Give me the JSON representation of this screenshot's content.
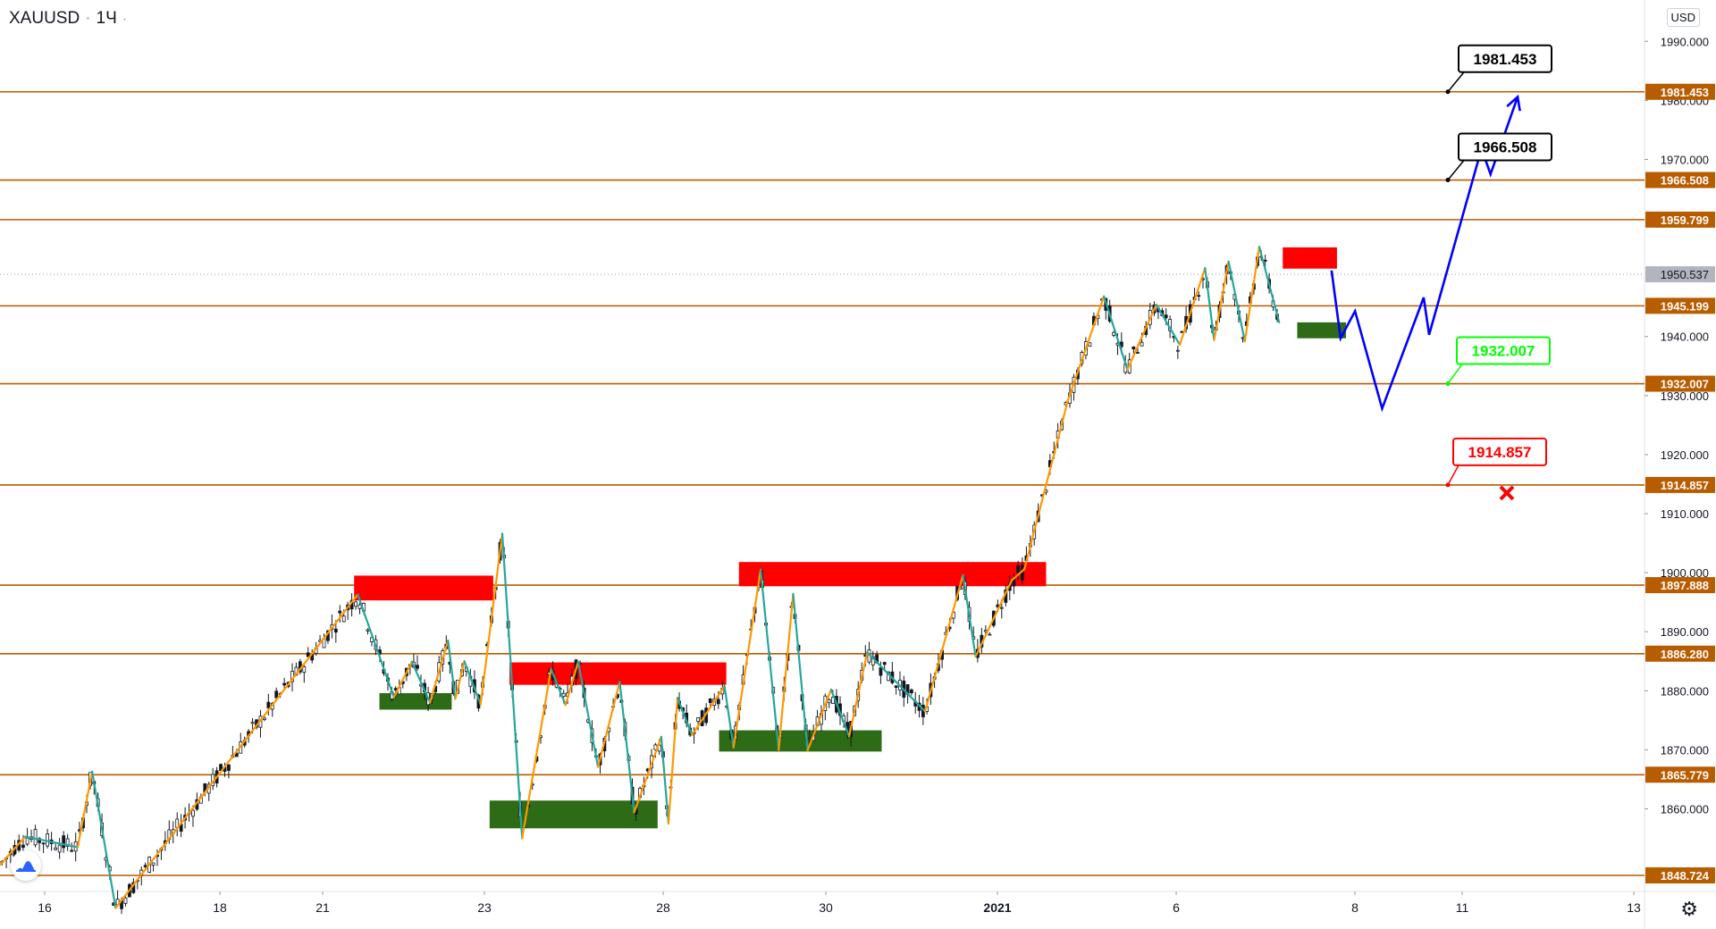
{
  "header": {
    "symbol": "XAUUSD",
    "separator": "·",
    "interval": "1Ч",
    "menu_dot": "·"
  },
  "currency": "USD",
  "icons": {
    "logo": "tradingview-logo-icon",
    "settings": "gear-icon",
    "invalidation": "x-mark-icon"
  },
  "colors": {
    "level_line": "#b85c00",
    "level_label_bg": "#b85c00",
    "supply_zone": "#ff0000",
    "demand_zone": "#2e6b16",
    "zigzag_up": "#ff9800",
    "zigzag_down": "#26a69a",
    "projection": "#0000ff",
    "current_price_bg": "#b2b5be",
    "target_callout_border": "#000000",
    "support_callout": "#00ff00",
    "stop_callout": "#ff0000"
  },
  "chart_data": {
    "type": "candlestick",
    "symbol": "XAUUSD",
    "interval": "1Ч",
    "currency": "USD",
    "y_axis": {
      "range": [
        1846,
        1997
      ],
      "ticks": [
        1990.0,
        1980.0,
        1970.0,
        1940.0,
        1930.0,
        1920.0,
        1910.0,
        1900.0,
        1890.0,
        1880.0,
        1870.0,
        1860.0
      ],
      "tick_labels": [
        "1990.000",
        "1980.000",
        "1970.000",
        "1940.000",
        "1930.000",
        "1920.000",
        "1910.000",
        "1900.000",
        "1890.000",
        "1880.000",
        "1870.000",
        "1860.000"
      ]
    },
    "x_axis": {
      "ticks": [
        "16",
        "18",
        "21",
        "23",
        "28",
        "30",
        "2021",
        "6",
        "8",
        "11",
        "13"
      ],
      "bold_tick": "2021"
    },
    "horizontal_levels": [
      {
        "value": 1981.453,
        "label": "1981.453"
      },
      {
        "value": 1966.508,
        "label": "1966.508"
      },
      {
        "value": 1959.799,
        "label": "1959.799"
      },
      {
        "value": 1945.199,
        "label": "1945.199"
      },
      {
        "value": 1932.007,
        "label": "1932.007"
      },
      {
        "value": 1914.857,
        "label": "1914.857"
      },
      {
        "value": 1897.888,
        "label": "1897.888"
      },
      {
        "value": 1886.28,
        "label": "1886.280"
      },
      {
        "value": 1865.779,
        "label": "1865.779"
      },
      {
        "value": 1848.724,
        "label": "1848.724"
      }
    ],
    "current_price": {
      "value": 1950.537,
      "label": "1950.537"
    },
    "supply_zones": [
      {
        "time_from": 9.8,
        "time_to": 13.65,
        "price_from": 1895.3,
        "price_to": 1899.5
      },
      {
        "time_from": 14.1,
        "time_to": 20.1,
        "price_from": 1881.0,
        "price_to": 1884.8
      },
      {
        "time_from": 20.45,
        "time_to": 28.95,
        "price_from": 1897.7,
        "price_to": 1901.8
      },
      {
        "time_from": 35.5,
        "time_to": 37.0,
        "price_from": 1951.5,
        "price_to": 1955.1
      }
    ],
    "demand_zones": [
      {
        "time_from": 10.5,
        "time_to": 12.5,
        "price_from": 1876.8,
        "price_to": 1879.6
      },
      {
        "time_from": 13.55,
        "time_to": 18.2,
        "price_from": 1856.7,
        "price_to": 1861.4
      },
      {
        "time_from": 19.9,
        "time_to": 24.4,
        "price_from": 1869.7,
        "price_to": 1873.3
      },
      {
        "time_from": 35.9,
        "time_to": 37.25,
        "price_from": 1939.7,
        "price_to": 1942.4
      }
    ],
    "zigzag": [
      [
        0.0,
        1850.5
      ],
      [
        0.7,
        1855.3
      ],
      [
        2.15,
        1853.5
      ],
      [
        2.55,
        1866.3
      ],
      [
        3.2,
        1843.2
      ],
      [
        9.9,
        1896.3
      ],
      [
        10.9,
        1878.9
      ],
      [
        11.4,
        1884.9
      ],
      [
        11.9,
        1878.0
      ],
      [
        12.4,
        1888.5
      ],
      [
        12.6,
        1878.6
      ],
      [
        12.85,
        1885.0
      ],
      [
        13.3,
        1877.7
      ],
      [
        13.9,
        1906.6
      ],
      [
        14.45,
        1855.0
      ],
      [
        15.25,
        1883.7
      ],
      [
        15.65,
        1877.6
      ],
      [
        16.0,
        1884.9
      ],
      [
        16.55,
        1867.1
      ],
      [
        17.15,
        1881.5
      ],
      [
        17.55,
        1859.4
      ],
      [
        18.3,
        1872.2
      ],
      [
        18.5,
        1857.5
      ],
      [
        18.75,
        1878.8
      ],
      [
        19.15,
        1872.5
      ],
      [
        20.05,
        1880.8
      ],
      [
        20.3,
        1870.4
      ],
      [
        21.05,
        1900.5
      ],
      [
        21.55,
        1870.0
      ],
      [
        21.95,
        1896.4
      ],
      [
        22.35,
        1869.9
      ],
      [
        23.0,
        1880.2
      ],
      [
        23.5,
        1872.3
      ],
      [
        24.0,
        1886.5
      ],
      [
        25.6,
        1876.5
      ],
      [
        26.65,
        1899.6
      ],
      [
        27.0,
        1885.8
      ],
      [
        28.0,
        1898.7
      ],
      [
        28.35,
        1900.6
      ],
      [
        29.55,
        1929.1
      ],
      [
        30.55,
        1946.8
      ],
      [
        31.2,
        1934.4
      ],
      [
        32.0,
        1945.4
      ],
      [
        32.65,
        1938.6
      ],
      [
        33.35,
        1951.6
      ],
      [
        33.6,
        1939.4
      ],
      [
        34.0,
        1952.7
      ],
      [
        34.45,
        1939.2
      ],
      [
        34.85,
        1955.2
      ],
      [
        35.4,
        1942.4
      ]
    ],
    "projection_path": [
      [
        36.85,
        1951.2
      ],
      [
        37.1,
        1939.7
      ],
      [
        37.5,
        1944.3
      ],
      [
        38.25,
        1927.8
      ],
      [
        39.4,
        1946.6
      ],
      [
        39.55,
        1940.3
      ],
      [
        41.0,
        1971.8
      ],
      [
        41.25,
        1967.5
      ],
      [
        42.0,
        1980.6
      ]
    ],
    "price_targets": [
      {
        "value": 1981.453,
        "label": "1981.453",
        "style": "target"
      },
      {
        "value": 1966.508,
        "label": "1966.508",
        "style": "target"
      },
      {
        "value": 1932.007,
        "label": "1932.007",
        "style": "support"
      },
      {
        "value": 1914.857,
        "label": "1914.857",
        "style": "stop"
      }
    ],
    "invalidation_marker": {
      "time": 41.7,
      "price": 1913.5,
      "symbol": "x"
    }
  }
}
